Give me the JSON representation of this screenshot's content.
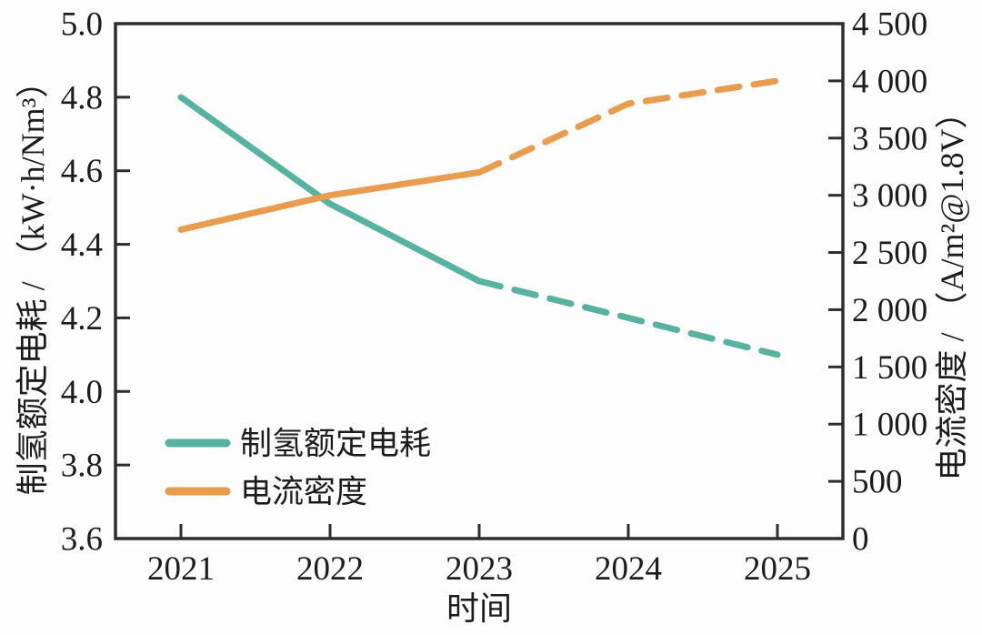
{
  "figure": {
    "background": "#fdfdfd",
    "frame_color": "#2d2d2d",
    "text_color": "#1c1c1c"
  },
  "chart_data": {
    "type": "line",
    "title": "",
    "x": [
      2021,
      2022,
      2023,
      2024,
      2025
    ],
    "x_axis": {
      "title": "时间",
      "tick_labels": [
        "2021",
        "2022",
        "2023",
        "2024",
        "2025"
      ]
    },
    "left_axis": {
      "title": "制氢额定电耗 / （kW·h/Nm³）",
      "range": [
        3.6,
        5.0
      ],
      "ticks": [
        5.0,
        4.8,
        4.6,
        4.4,
        4.2,
        4.0,
        3.8,
        3.6
      ],
      "tick_labels": [
        "5.0",
        "4.8",
        "4.6",
        "4.4",
        "4.2",
        "4.0",
        "3.8",
        "3.6"
      ]
    },
    "right_axis": {
      "title": "电流密度 / （A/m²@1.8V）",
      "range": [
        0,
        4500
      ],
      "ticks": [
        4500,
        4000,
        3500,
        3000,
        2500,
        2000,
        1500,
        1000,
        500,
        0
      ],
      "tick_labels": [
        "4 500",
        "4 000",
        "3 500",
        "3 000",
        "2 500",
        "2 000",
        "1 500",
        "1 000",
        "500",
        "0"
      ]
    },
    "series": [
      {
        "name": "制氢额定电耗",
        "axis": "left",
        "color": "#58b2a0",
        "solid_until_x": 2023,
        "values": [
          4.8,
          4.51,
          4.3,
          4.2,
          4.1
        ]
      },
      {
        "name": "电流密度",
        "axis": "right",
        "color": "#e89c4e",
        "solid_until_x": 2023,
        "values": [
          2700,
          3000,
          3200,
          3800,
          4000
        ]
      }
    ],
    "legend": {
      "position": "lower-left",
      "entries": [
        "制氢额定电耗",
        "电流密度"
      ]
    },
    "grid": false,
    "line_style_note": "solid 2021-2023 (actual), dashed 2023-2025 (projected)"
  }
}
